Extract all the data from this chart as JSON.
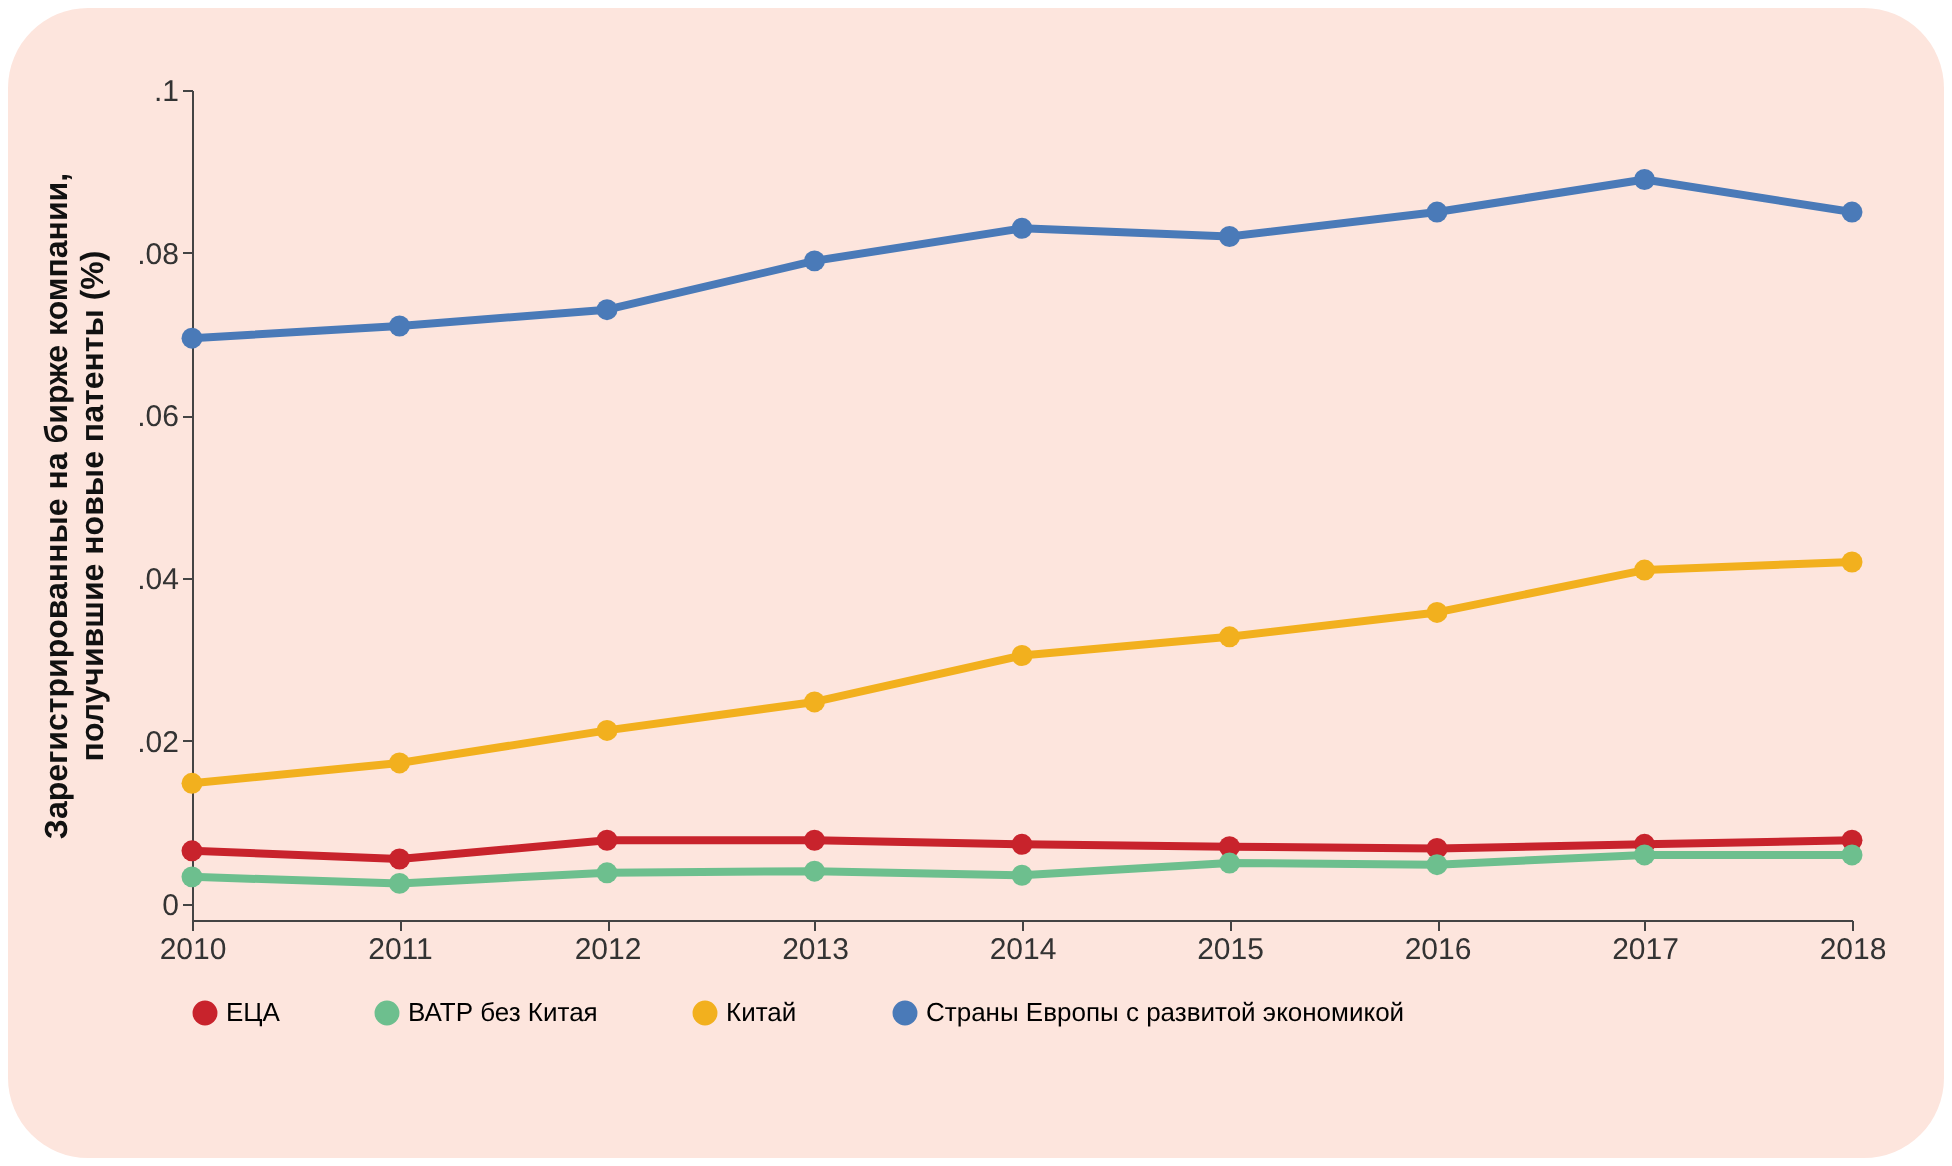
{
  "chart_data": {
    "type": "line",
    "ylabel": "Зарегистрированные на бирже компании,\nполучившие новые патенты (%)",
    "x": [
      2010,
      2011,
      2012,
      2013,
      2014,
      2015,
      2016,
      2017,
      2018
    ],
    "xlim": [
      2010,
      2018
    ],
    "xticks": [
      2010,
      2011,
      2012,
      2013,
      2014,
      2015,
      2016,
      2017,
      2018
    ],
    "ylim": [
      -0.002,
      0.1
    ],
    "yticks": [
      {
        "value": 0,
        "label": "0"
      },
      {
        "value": 0.02,
        "label": ".02"
      },
      {
        "value": 0.04,
        "label": ".04"
      },
      {
        "value": 0.06,
        "label": ".06"
      },
      {
        "value": 0.08,
        "label": ".08"
      },
      {
        "value": 0.1,
        "label": ".1"
      }
    ],
    "series": [
      {
        "name": "ЕЦА",
        "color": "#c8232c",
        "values": [
          0.0065,
          0.0055,
          0.0078,
          0.0078,
          0.0073,
          0.007,
          0.0068,
          0.0073,
          0.0078
        ]
      },
      {
        "name": "ВАТР без Китая",
        "color": "#6dbf8e",
        "values": [
          0.0033,
          0.0025,
          0.0038,
          0.004,
          0.0035,
          0.005,
          0.0048,
          0.006,
          0.006
        ]
      },
      {
        "name": "Китай",
        "color": "#f2b01e",
        "values": [
          0.0148,
          0.0173,
          0.0213,
          0.0248,
          0.0305,
          0.0328,
          0.0358,
          0.041,
          0.042
        ]
      },
      {
        "name": "Страны Европы с развитой экономикой",
        "color": "#4a7ab8",
        "values": [
          0.0695,
          0.071,
          0.073,
          0.079,
          0.083,
          0.082,
          0.085,
          0.089,
          0.085
        ]
      }
    ],
    "grid": false,
    "legend": "bottom",
    "marker": "circle",
    "line_style": "solid"
  }
}
